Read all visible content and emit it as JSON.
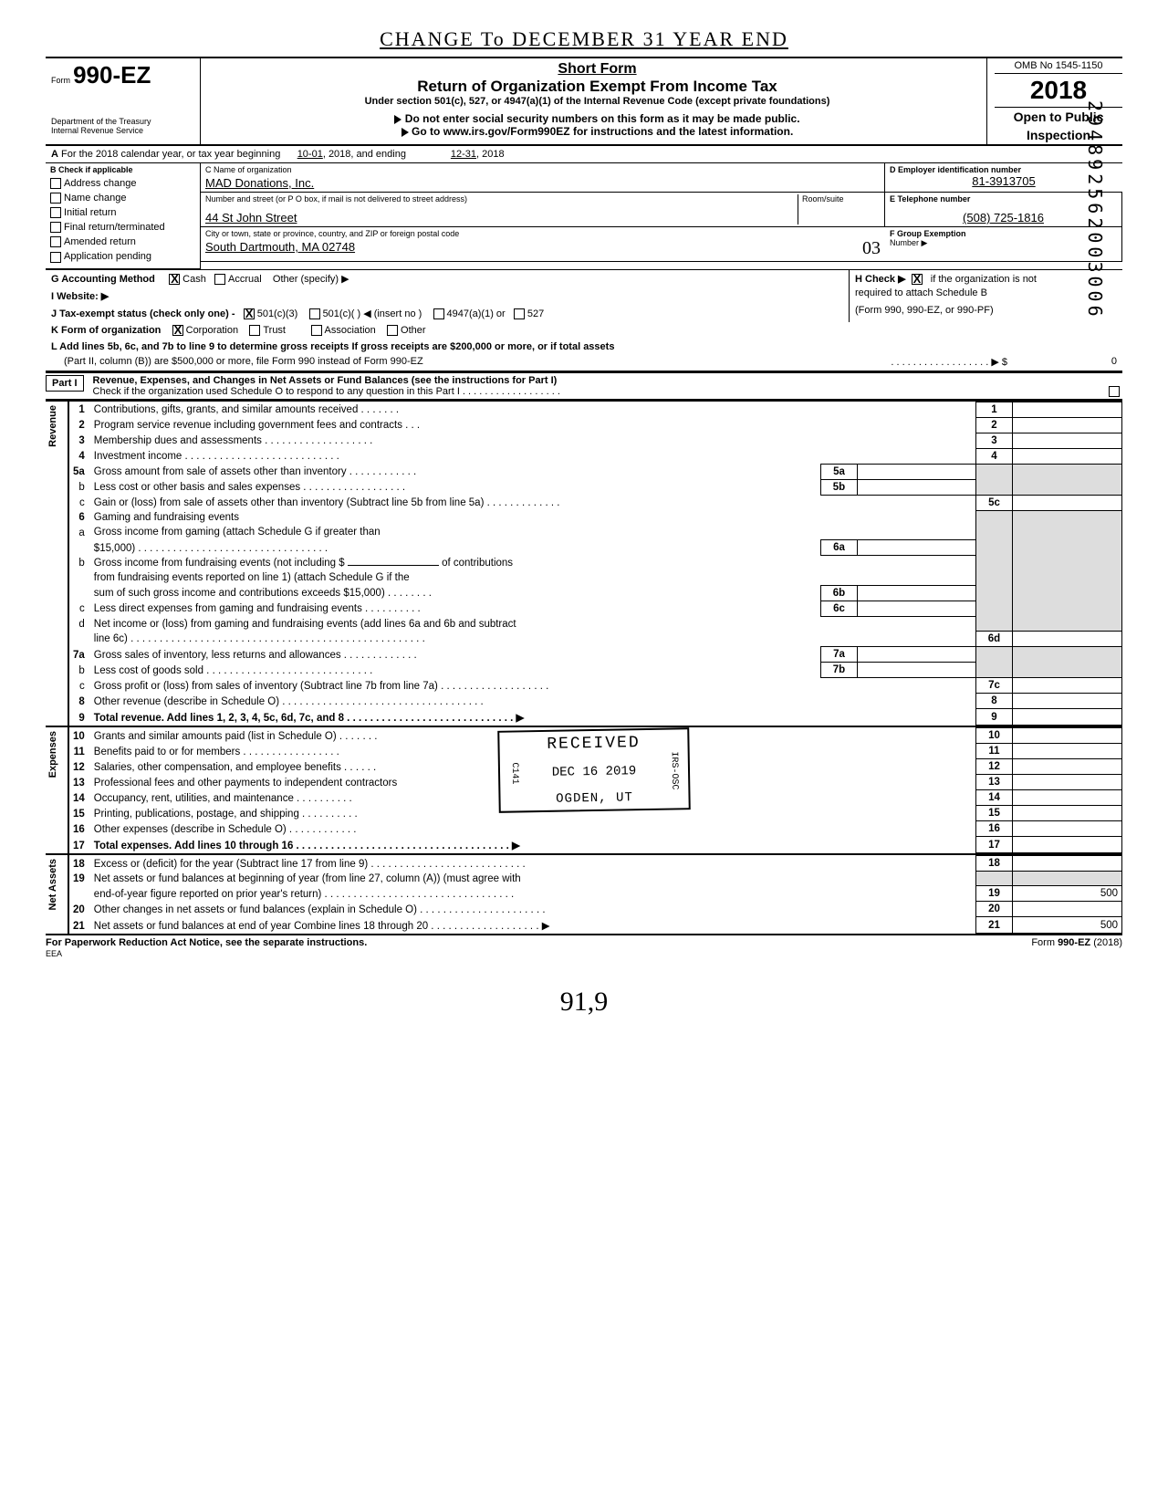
{
  "handwritten_title": "CHANGE  To  DECEMBER 31  YEAR END",
  "header": {
    "form_label": "Form",
    "form_number": "990-EZ",
    "dept1": "Department of the Treasury",
    "dept2": "Internal Revenue Service",
    "short": "Short Form",
    "return": "Return of Organization Exempt From Income Tax",
    "sub": "Under section 501(c), 527, or 4947(a)(1) of the Internal Revenue Code (except private foundations)",
    "note": "Do not enter social security numbers on this form as it may be made public.",
    "goto": "Go to www.irs.gov/Form990EZ for instructions and the latest information.",
    "omb": "OMB No 1545-1150",
    "year": "2018",
    "open1": "Open to Public",
    "open2": "Inspection"
  },
  "sidenum": "294892562003006",
  "rowA": {
    "label": "A",
    "text1": "For the 2018 calendar year, or tax year beginning",
    "begin": "10-01",
    "mid": ", 2018, and ending",
    "end": "12-31",
    "endyear": ", 2018"
  },
  "B": {
    "header": "B  Check if applicable",
    "items": [
      "Address change",
      "Name change",
      "Initial return",
      "Final return/terminated",
      "Amended return",
      "Application pending"
    ]
  },
  "C": {
    "nameLabel": "C   Name of organization",
    "name": "MAD Donations, Inc.",
    "addrLabel": "Number and street (or P O  box, if mail is not delivered to street address)",
    "roomLabel": "Room/suite",
    "addr": "44 St John Street",
    "cityLabel": "City or town, state or province, country, and ZIP or foreign postal code",
    "city": "South Dartmouth, MA 02748",
    "suite": "03"
  },
  "D": {
    "label": "D  Employer identification number",
    "val": "81-3913705"
  },
  "E": {
    "label": "E  Telephone number",
    "val": "(508) 725-1816"
  },
  "F": {
    "label": "F  Group Exemption",
    "label2": "Number  ▶"
  },
  "G": {
    "label": "G   Accounting Method",
    "cash": "Cash",
    "accr": "Accrual",
    "other": "Other (specify) ▶"
  },
  "H": {
    "label": "H   Check ▶",
    "text": "if the organization is not",
    "text2": "required to attach Schedule B",
    "text3": "(Form 990, 990-EZ, or 990-PF)"
  },
  "I": {
    "label": "I    Website:   ▶"
  },
  "J": {
    "label": "J   Tax-exempt status (check only one) -",
    "opt1": "501(c)(3)",
    "opt2": "501(c)(",
    "insert": ")  ◀ (insert no )",
    "opt3": "4947(a)(1) or",
    "opt4": "527"
  },
  "K": {
    "label": "K   Form of organization",
    "corp": "Corporation",
    "trust": "Trust",
    "assoc": "Association",
    "other": "Other"
  },
  "L": {
    "line1": "L   Add lines 5b, 6c, and 7b to line 9 to determine gross receipts  If gross receipts are $200,000 or more, or if total assets",
    "line2": "(Part II, column (B)) are $500,000 or more, file Form 990 instead of Form 990-EZ",
    "dots": ". . . . . . . . . . . . . . . . . . ▶ $",
    "val": "0"
  },
  "PartI": {
    "tag": "Part I",
    "title": "Revenue, Expenses, and Changes in Net Assets or Fund Balances (see the instructions for Part I)",
    "sub": "Check if the organization used Schedule O to respond to any question in this Part I    . . . . . . . . . . . . . . . . . ."
  },
  "revenueLabel": "Revenue",
  "expensesLabel": "Expenses",
  "netassetsLabel": "Net Assets",
  "lines": {
    "l1": "Contributions, gifts, grants, and similar amounts received  . . . . . . .",
    "l2": "Program service revenue including government fees and contracts . . .",
    "l3": "Membership dues and assessments  . . . . . . . . . . . . . . . . . . .",
    "l4": "Investment income   . . . . . . . . . . . . . . . . . . . . . . . . . . .",
    "l5a": "Gross amount from sale of assets other than inventory   . . . . . . . . . . . .",
    "l5b": "Less cost or other basis and sales expenses  . . . . . . . . . . . . . . . . . .",
    "l5c": "Gain or (loss) from sale of assets other than inventory (Subtract line 5b from line 5a)  . . . . . . . . . . . . .",
    "l6": "Gaming and fundraising events",
    "l6a1": "Gross income from gaming (attach Schedule G if greater than",
    "l6a2": "$15,000)  . . . . . . . . . . . . . . . . . . . . . . . . . . . . . . . . .",
    "l6b1": "Gross income from fundraising events (not including       $",
    "l6b1b": "of contributions",
    "l6b2": "from fundraising events reported on line 1) (attach Schedule G if the",
    "l6b3": "sum of such gross income and contributions exceeds $15,000)   . . . . . . . .",
    "l6c": "Less  direct expenses from gaming and fundraising events    . . . . . . . . . .",
    "l6d1": "Net income or (loss) from gaming and fundraising events (add lines 6a and 6b and subtract",
    "l6d2": "line 6c)  . . . . . . . . . . . . . . . . . . . . . . . . . . . . . . . . . . . . . . . . . . . . . . . . . . .",
    "l7a": "Gross sales of inventory, less returns and allowances  . . . . . . . . . . . . .",
    "l7b": "Less  cost of goods sold  . . . . . . . . . . . . . . . . . . . . . . . . . . . . .",
    "l7c": "Gross profit or (loss) from sales of inventory (Subtract line 7b from line 7a)  . . . . . . . . . . . . . . . . . . .",
    "l8": "Other revenue (describe in Schedule O)   . . . . . . . . . . . . . . . . . . . . . . . . . . . . . . . . . . .",
    "l9": "Total revenue.  Add lines 1, 2, 3, 4, 5c, 6d, 7c, and 8   . . . . . . . . . . . . . . . . . . . . . . . . . . . . . ▶",
    "l10": "Grants and similar amounts paid (list in Schedule O) . . . . . . .",
    "l11": "Benefits paid to or for members   . . . . . . . . . . . . . . . . .",
    "l12": "Salaries, other compensation, and employee benefits  . . . . . .",
    "l13": "Professional fees and other payments to independent contractors",
    "l14": "Occupancy, rent, utilities, and maintenance     . . . . . . . . . .",
    "l15": "Printing, publications, postage, and shipping  . . . . . . . . . .",
    "l16": "Other expenses (describe in Schedule O) . . . . . . . . . . . .",
    "l17": "Total expenses.  Add lines 10 through 16 . . . . . . . . . . . . . . . . . . . . . . . . . . . . . . . . . . . . . ▶",
    "l18": "Excess or (deficit) for the year (Subtract line 17 from line 9)   . . . . . . . . . . . . . . . . . . . . . . . . . . .",
    "l19a": "Net assets or fund balances at beginning of year (from line 27, column (A)) (must agree with",
    "l19b": "end-of-year figure reported on prior year's return)   . . . . . . . . . . . . . . . . . . . . . . . . . . . . . . . . .",
    "l20": "Other changes in net assets or fund balances (explain in Schedule O)   . . . . . . . . . . . . . . . . . . . . . .",
    "l21": "Net assets or fund balances at end of year  Combine lines 18 through 20 . . . . . . . . . . . . . . . . . . . ▶"
  },
  "amounts": {
    "l19": "500",
    "l21": "500"
  },
  "stamp": {
    "received": "RECEIVED",
    "date": "DEC 16 2019",
    "place": "OGDEN, UT",
    "left": "C141",
    "right": "IRS-OSC"
  },
  "footer": {
    "left": "For Paperwork Reduction Act Notice, see the separate instructions.",
    "eea": "EEA",
    "right": "Form 990-EZ (2018)"
  },
  "hw_bottom": "91,9"
}
